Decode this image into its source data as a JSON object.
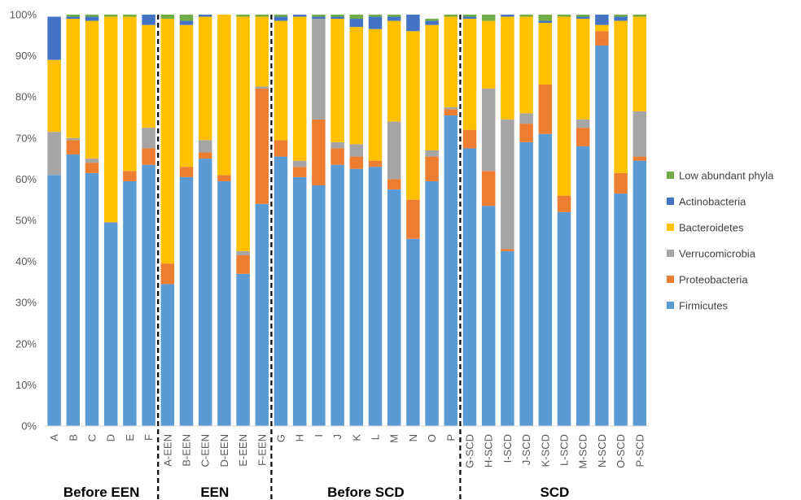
{
  "chart_data": {
    "type": "bar",
    "stacked": true,
    "ylim": [
      0,
      100
    ],
    "ytick_format": "percent",
    "yticks": [
      0,
      10,
      20,
      30,
      40,
      50,
      60,
      70,
      80,
      90,
      100
    ],
    "grid": false,
    "legend_position": "right",
    "categories": [
      "A",
      "B",
      "C",
      "D",
      "E",
      "F",
      "A-EEN",
      "B-EEN",
      "C-EEN",
      "D-EEN",
      "E-EEN",
      "F-EEN",
      "G",
      "H",
      "I",
      "J",
      "K",
      "L",
      "M",
      "N",
      "O",
      "P",
      "G-SCD",
      "H-SCD",
      "I-SCD",
      "J-SCD",
      "K-SCD",
      "L-SCD",
      "M-SCD",
      "N-SCD",
      "O-SCD",
      "P-SCD"
    ],
    "series": [
      {
        "name": "Firmicutes",
        "color": "#5B9BD5",
        "values": [
          61,
          66,
          61.5,
          49.5,
          59.5,
          63.5,
          34.5,
          60.5,
          65,
          59.5,
          37,
          54,
          65.5,
          60.5,
          58.5,
          63.5,
          62.5,
          63,
          57.5,
          45.5,
          59.5,
          75.5,
          67.5,
          53.5,
          42.5,
          69,
          71,
          52,
          68,
          92.5,
          56.5,
          64.5
        ]
      },
      {
        "name": "Proteobacteria",
        "color": "#ED7D31",
        "values": [
          0,
          3.5,
          2.5,
          0,
          2.5,
          4,
          5,
          2.5,
          1.5,
          1.5,
          4.5,
          28,
          4,
          2.5,
          16,
          4,
          3,
          1.5,
          2.5,
          9.5,
          6,
          1.5,
          4.5,
          8.5,
          0.5,
          4.5,
          12,
          4,
          4.5,
          3.5,
          5,
          1
        ]
      },
      {
        "name": "Verrucomicrobia",
        "color": "#A5A5A5",
        "values": [
          10.5,
          0.5,
          1,
          0,
          0,
          5,
          0,
          0,
          3,
          0,
          1,
          0.5,
          0,
          1.5,
          24.5,
          1.5,
          3,
          0,
          14,
          0,
          1.5,
          0.5,
          0,
          20,
          31.5,
          2.5,
          0,
          0,
          2,
          0,
          0,
          11
        ]
      },
      {
        "name": "Bacteroidetes",
        "color": "#FFC000",
        "values": [
          17.5,
          29,
          33.5,
          50,
          37.5,
          25,
          59.5,
          34.5,
          30,
          39,
          57,
          17,
          29,
          35,
          0,
          30,
          28.5,
          32,
          24.5,
          41,
          30.5,
          22,
          27,
          16.5,
          25,
          23.5,
          15,
          43.5,
          24.5,
          1.5,
          37,
          23
        ]
      },
      {
        "name": "Actinobacteria",
        "color": "#4472C4",
        "values": [
          10.5,
          0.5,
          1,
          0,
          0,
          2.5,
          0,
          1,
          0.5,
          0,
          0,
          0,
          1,
          0.5,
          0.5,
          0.5,
          2,
          3,
          1,
          4,
          1,
          0,
          0.5,
          0,
          0.5,
          0,
          0.5,
          0,
          0.5,
          2.5,
          1,
          0
        ]
      },
      {
        "name": "Low abundant phyla",
        "color": "#70AD47",
        "values": [
          0,
          0.5,
          0.5,
          0.5,
          0.5,
          0,
          1,
          1.5,
          0,
          0,
          0.5,
          0.5,
          0.5,
          0,
          0.5,
          0.5,
          1,
          0.5,
          0.5,
          0,
          0.5,
          0.5,
          0.5,
          1.5,
          0,
          0.5,
          1.5,
          0.5,
          0.5,
          0,
          0.5,
          0.5
        ]
      }
    ],
    "groups": [
      {
        "label": "Before EEN",
        "start": 0,
        "end": 5
      },
      {
        "label": "EEN",
        "start": 6,
        "end": 11
      },
      {
        "label": "Before SCD",
        "start": 12,
        "end": 21
      },
      {
        "label": "SCD",
        "start": 22,
        "end": 31
      }
    ],
    "legend_order": [
      "Low abundant phyla",
      "Actinobacteria",
      "Bacteroidetes",
      "Verrucomicrobia",
      "Proteobacteria",
      "Firmicutes"
    ]
  }
}
